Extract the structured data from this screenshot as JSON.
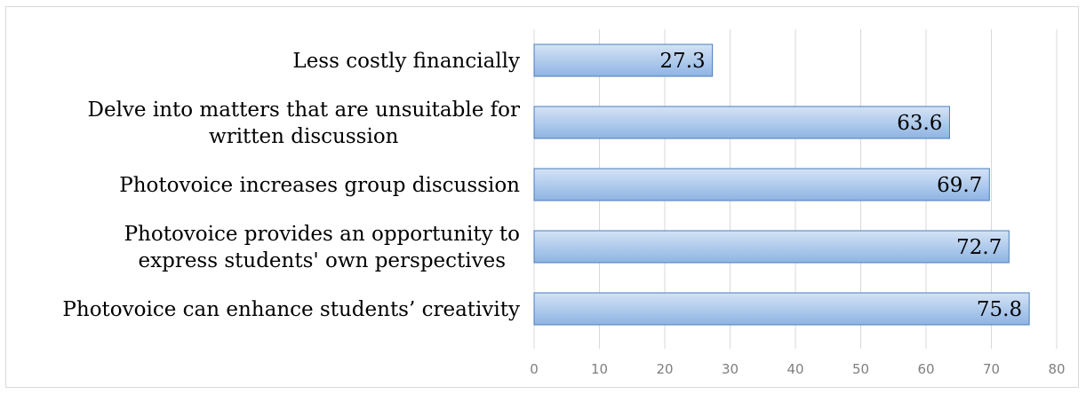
{
  "chart_data": {
    "type": "bar",
    "orientation": "horizontal",
    "title": "",
    "xlabel": "",
    "ylabel": "",
    "categories": [
      [
        "Less costly financially"
      ],
      [
        "Delve into matters that are unsuitable for",
        "written discussion"
      ],
      [
        "Photovoice increases group discussion"
      ],
      [
        "Photovoice provides an opportunity to",
        "express students' own perspectives"
      ],
      [
        "Photovoice can enhance students’ creativity"
      ]
    ],
    "values": [
      27.3,
      63.6,
      69.7,
      72.7,
      75.8
    ],
    "data_labels": [
      "27.3",
      "63.6",
      "69.7",
      "72.7",
      "75.8"
    ],
    "xlim": [
      0,
      80
    ],
    "xticks": [
      0,
      10,
      20,
      30,
      40,
      50,
      60,
      70,
      80
    ],
    "grid": true,
    "legend": "none",
    "colors": {
      "bar_fill_top": "#d4e3f5",
      "bar_fill_bottom": "#8eb4e3",
      "bar_stroke": "#4a7ebb",
      "gridline": "#d9d9d9",
      "tick_text": "#7f7f7f"
    }
  }
}
